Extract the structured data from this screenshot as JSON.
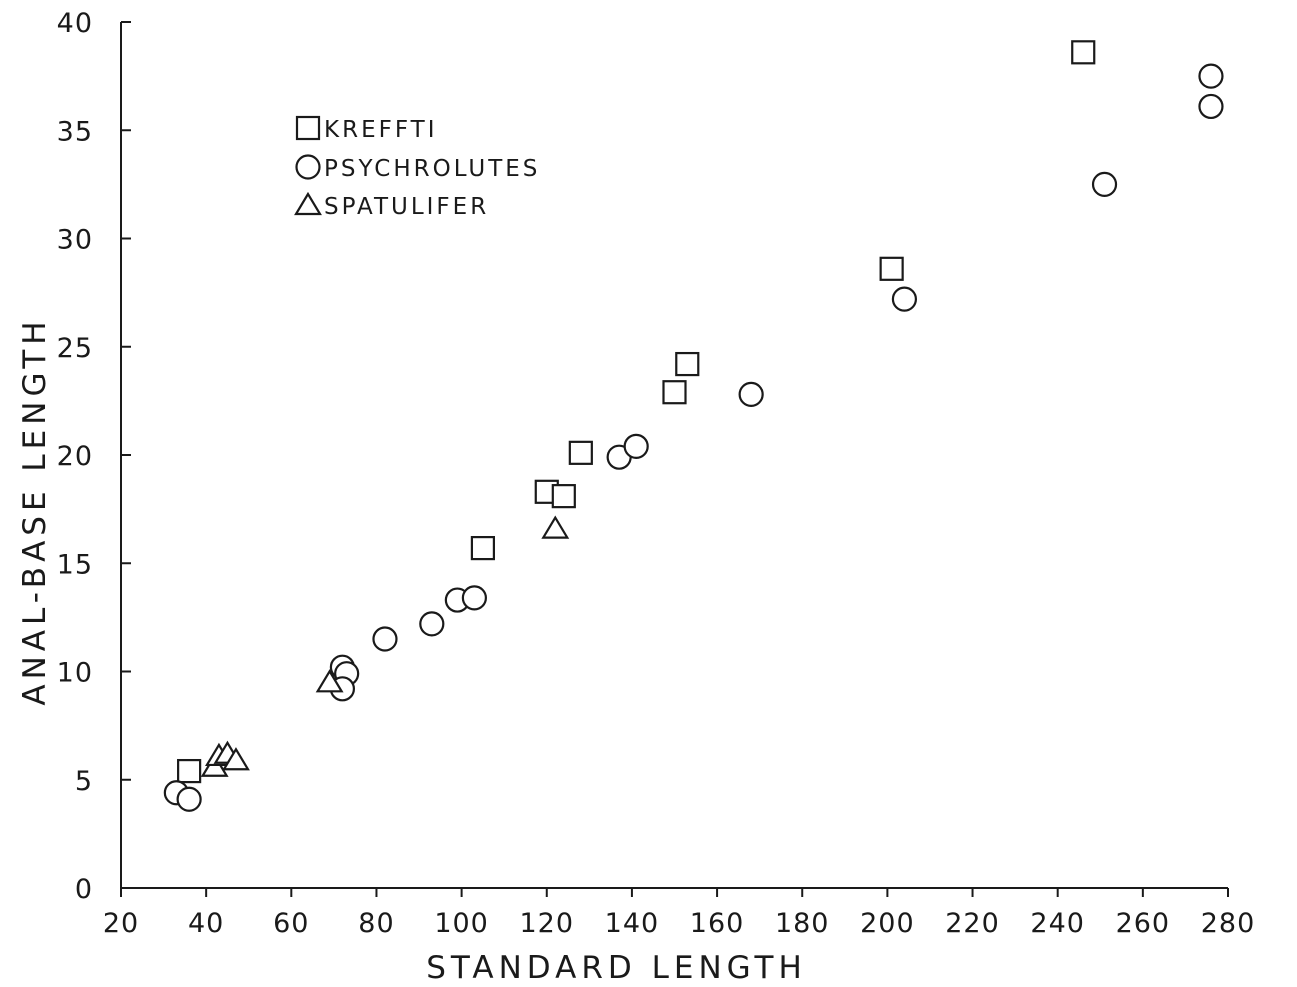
{
  "chart_data": {
    "type": "scatter",
    "title": "",
    "xlabel": "STANDARD LENGTH",
    "ylabel": "ANAL-BASE LENGTH",
    "xlim": [
      20,
      280
    ],
    "ylim": [
      0,
      40
    ],
    "xticks": [
      "20",
      "40",
      "60",
      "80",
      "100",
      "120",
      "140",
      "160",
      "180",
      "200",
      "220",
      "240",
      "260",
      "280"
    ],
    "yticks": [
      "0",
      "5",
      "10",
      "15",
      "20",
      "25",
      "30",
      "35",
      "40"
    ],
    "grid": false,
    "legend_position": "top-left",
    "series": [
      {
        "name": "KREFFTI",
        "marker": "square",
        "points": [
          [
            36,
            5.4
          ],
          [
            105,
            15.7
          ],
          [
            120,
            18.3
          ],
          [
            124,
            18.1
          ],
          [
            128,
            20.1
          ],
          [
            150,
            22.9
          ],
          [
            153,
            24.2
          ],
          [
            201,
            28.6
          ],
          [
            246,
            38.6
          ]
        ]
      },
      {
        "name": "PSYCHROLUTES",
        "marker": "circle",
        "points": [
          [
            33,
            4.4
          ],
          [
            36,
            4.1
          ],
          [
            72,
            10.2
          ],
          [
            73,
            9.9
          ],
          [
            72,
            9.2
          ],
          [
            82,
            11.5
          ],
          [
            93,
            12.2
          ],
          [
            99,
            13.3
          ],
          [
            103,
            13.4
          ],
          [
            137,
            19.9
          ],
          [
            141,
            20.4
          ],
          [
            168,
            22.8
          ],
          [
            204,
            27.2
          ],
          [
            251,
            32.5
          ],
          [
            276,
            37.5
          ],
          [
            276,
            36.1
          ]
        ]
      },
      {
        "name": "SPATULIFER",
        "marker": "triangle",
        "points": [
          [
            69,
            9.5
          ],
          [
            42,
            5.6
          ],
          [
            43,
            6.1
          ],
          [
            45,
            6.2
          ],
          [
            47,
            5.9
          ],
          [
            122,
            16.6
          ]
        ]
      }
    ]
  }
}
